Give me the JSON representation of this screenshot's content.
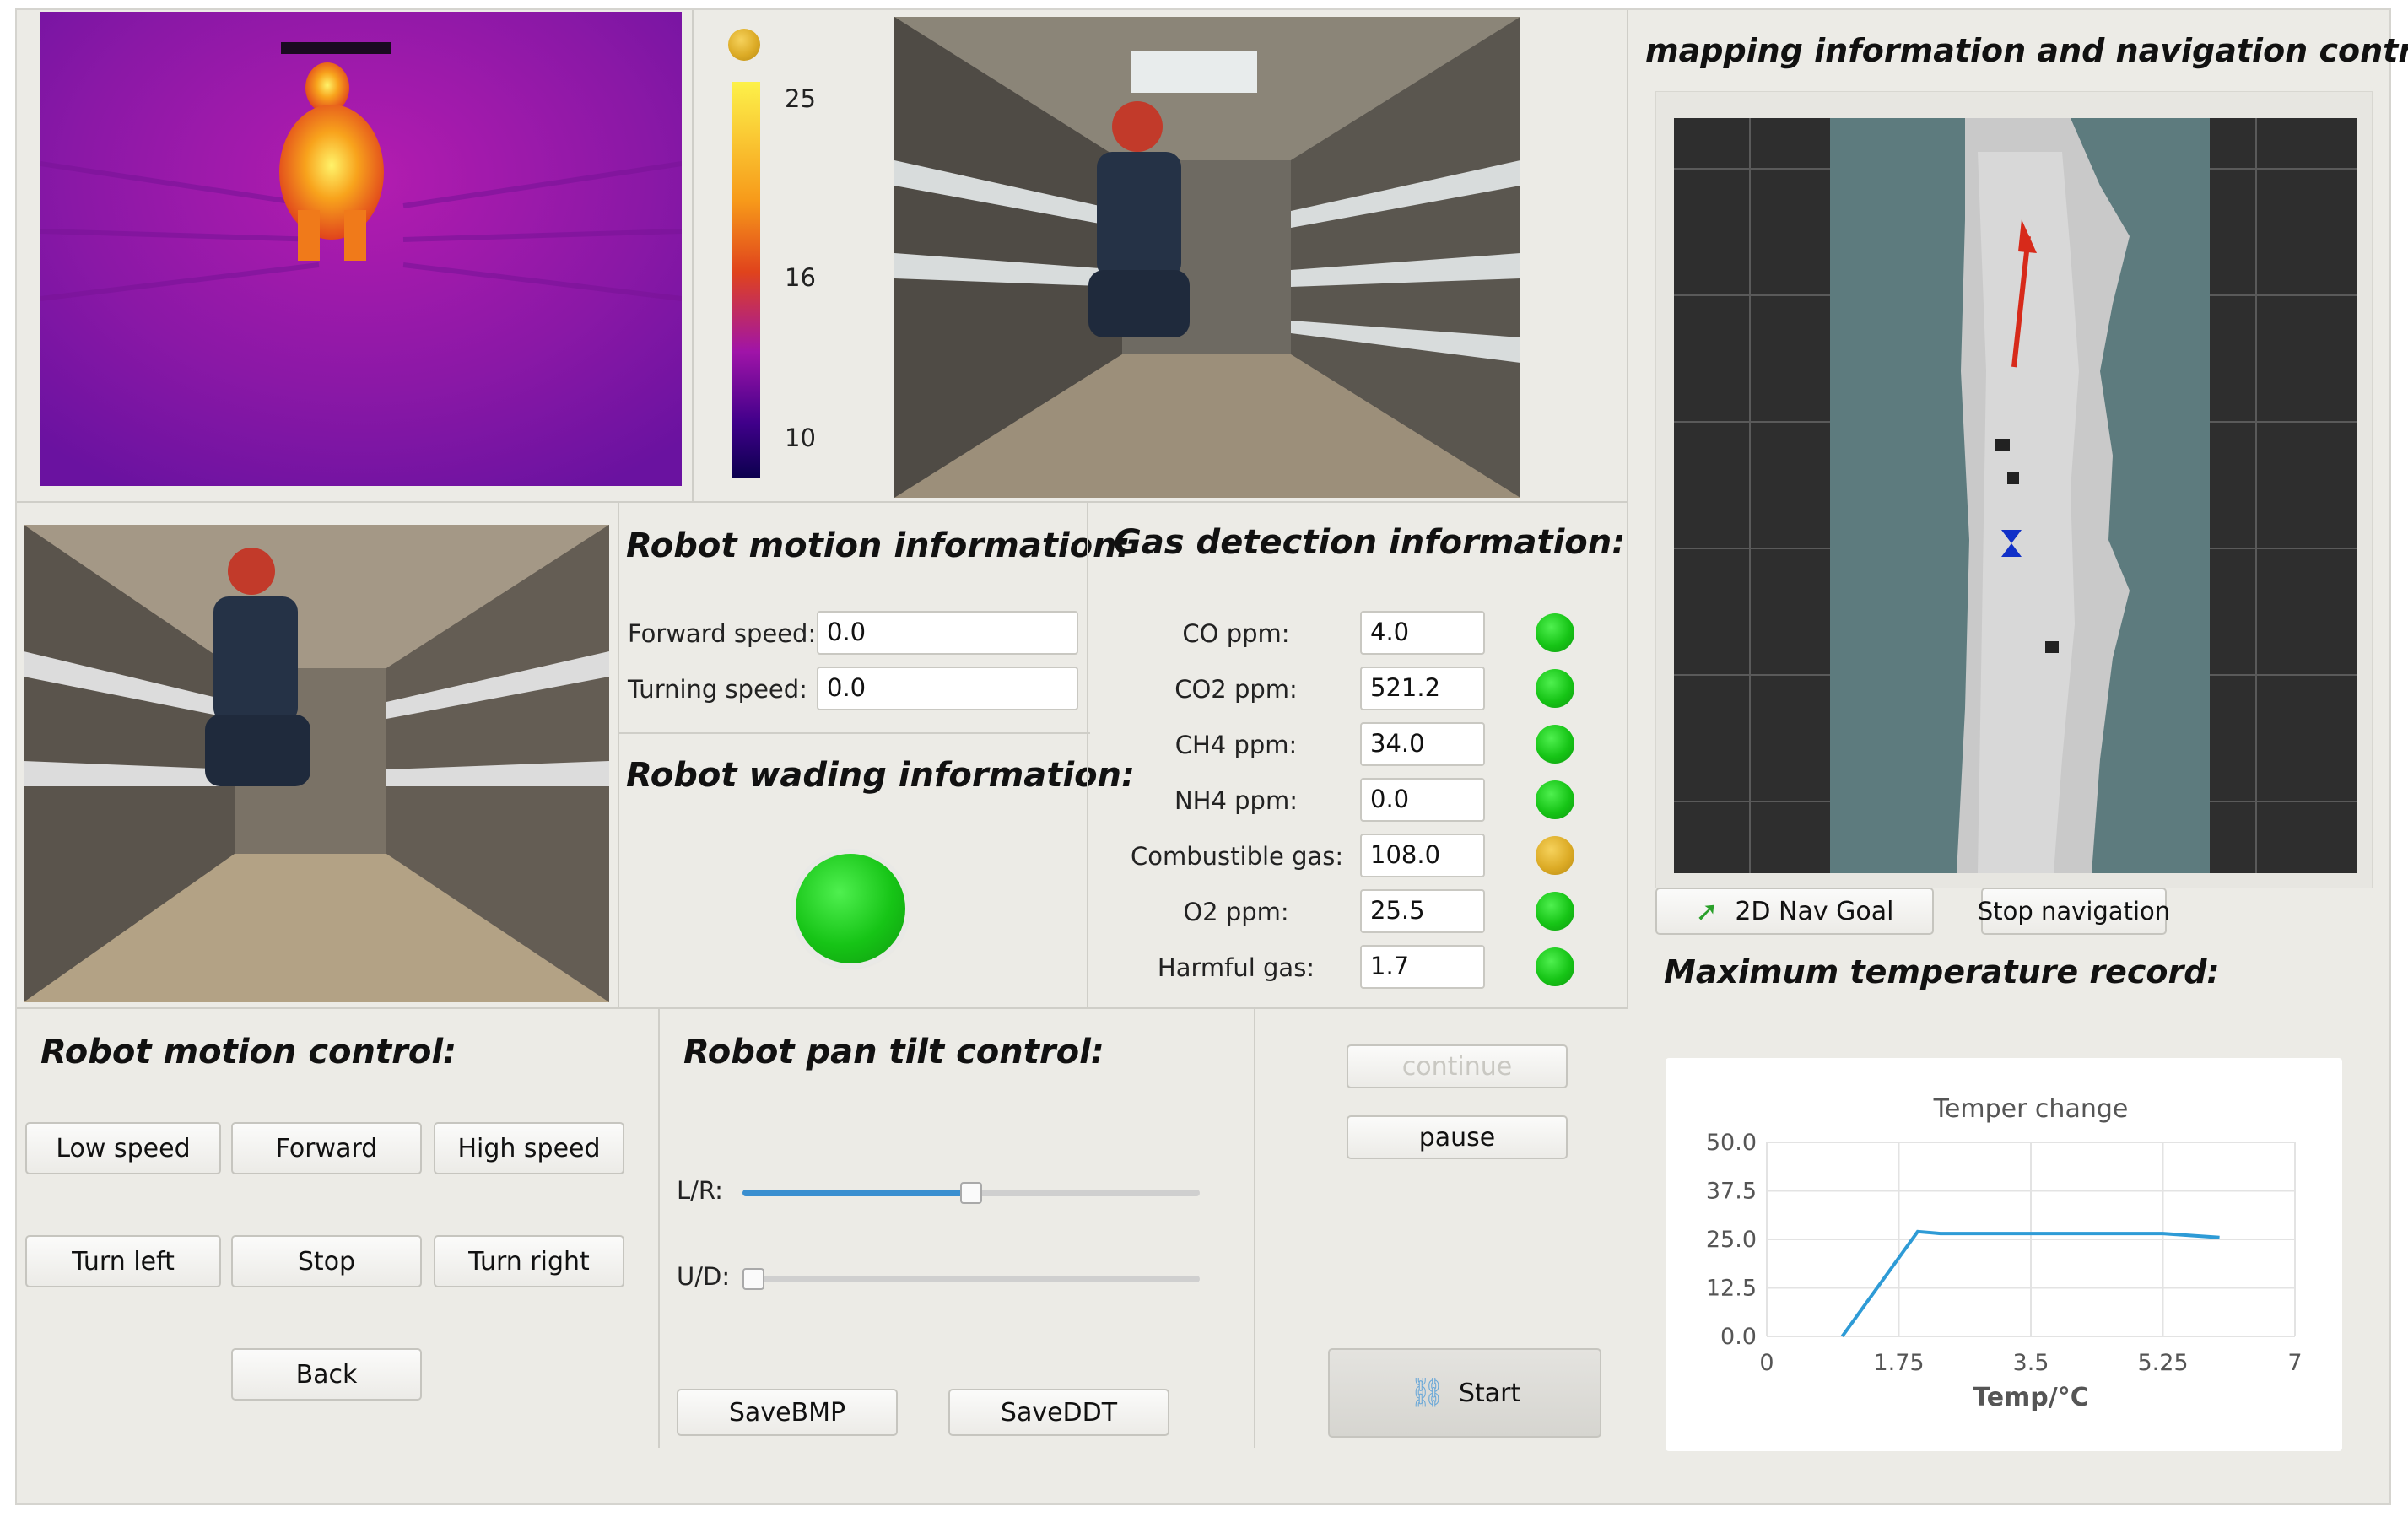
{
  "thermal": {
    "scale_labels": [
      "25",
      "16",
      "10"
    ],
    "colors": [
      "#fcf14a",
      "#f79a1a",
      "#e0431c",
      "#a014a8",
      "#40008a",
      "#0b004e"
    ]
  },
  "motion_info": {
    "title": "Robot motion information:",
    "forward_speed_label": "Forward speed:",
    "forward_speed_value": "0.0",
    "turning_speed_label": "Turning speed:",
    "turning_speed_value": "0.0"
  },
  "wading_info": {
    "title": "Robot wading information:",
    "status_color": "#16c416"
  },
  "gas": {
    "title": "Gas detection information:",
    "rows": [
      {
        "label": "CO ppm:",
        "value": "4.0",
        "status": "green"
      },
      {
        "label": "CO2 ppm:",
        "value": "521.2",
        "status": "green"
      },
      {
        "label": "CH4 ppm:",
        "value": "34.0",
        "status": "green"
      },
      {
        "label": "NH4 ppm:",
        "value": "0.0",
        "status": "green"
      },
      {
        "label": "Combustible gas:",
        "value": "108.0",
        "status": "amber"
      },
      {
        "label": "O2 ppm:",
        "value": "25.5",
        "status": "green"
      },
      {
        "label": "Harmful gas:",
        "value": "1.7",
        "status": "green"
      }
    ]
  },
  "mapping": {
    "title": "mapping information and navigation control:",
    "nav_goal_label": "2D Nav Goal",
    "stop_nav_label": "Stop navigation"
  },
  "max_temp": {
    "title": "Maximum temperature record:"
  },
  "motion_control": {
    "title": "Robot motion control:",
    "low_speed": "Low speed",
    "forward": "Forward",
    "high_speed": "High speed",
    "turn_left": "Turn left",
    "stop": "Stop",
    "turn_right": "Turn right",
    "back": "Back"
  },
  "pan_tilt": {
    "title": "Robot pan tilt control:",
    "lr_label": "L/R:",
    "ud_label": "U/D:",
    "lr_value": 0.5,
    "ud_value": 0.0,
    "save_bmp": "SaveBMP",
    "save_ddt": "SaveDDT"
  },
  "session": {
    "continue_label": "continue",
    "pause_label": "pause",
    "start_label": "Start"
  },
  "chart_data": {
    "type": "line",
    "title": "Temper change",
    "xlabel": "Temp/°C",
    "ylabel": "",
    "xlim": [
      0,
      7
    ],
    "ylim": [
      0,
      50
    ],
    "x_ticks": [
      "0",
      "1.75",
      "3.5",
      "5.25",
      "7"
    ],
    "y_ticks": [
      "50.0",
      "37.5",
      "25.0",
      "12.5",
      "0.0"
    ],
    "grid": true,
    "series": [
      {
        "x": [
          1.0,
          2.0,
          2.3,
          5.25,
          6.0
        ],
        "y": [
          0.0,
          27.0,
          26.5,
          26.5,
          25.5
        ]
      }
    ],
    "line_color": "#2e9bd6"
  }
}
